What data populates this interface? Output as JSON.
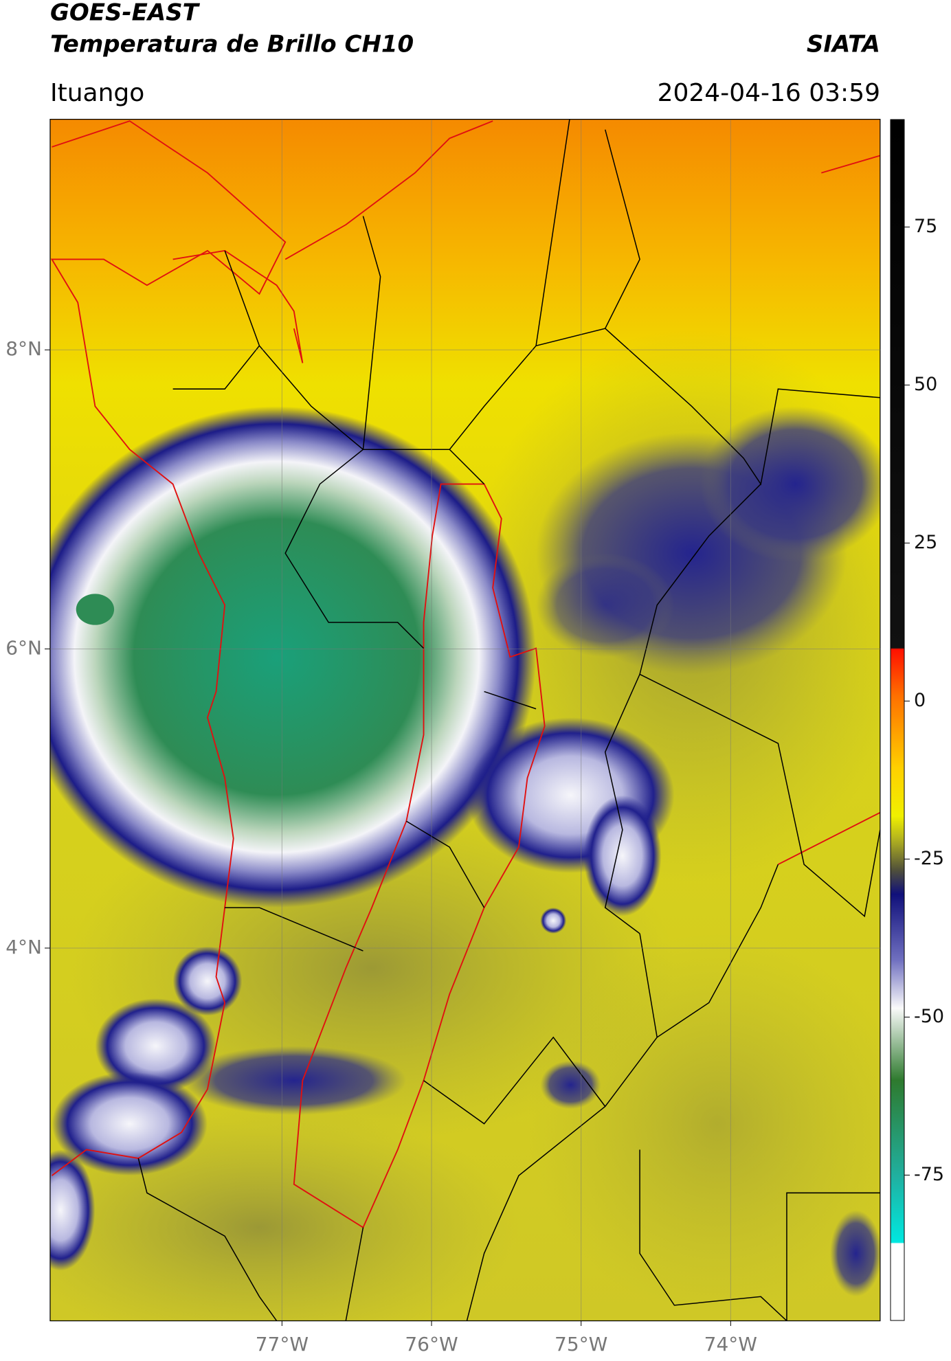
{
  "header": {
    "title": "GOES-EAST",
    "subtitle": "Temperatura de Brillo CH10",
    "source": "SIATA",
    "location": "Ituango",
    "datetime": "2024-04-16 03:59"
  },
  "map": {
    "xlim": [
      -78.55,
      -73.0
    ],
    "ylim": [
      1.51,
      9.54
    ],
    "xticks": [
      {
        "value": -77,
        "label": "77°W"
      },
      {
        "value": -76,
        "label": "76°W"
      },
      {
        "value": -75,
        "label": "75°W"
      },
      {
        "value": -74,
        "label": "74°W"
      }
    ],
    "yticks": [
      {
        "value": 8,
        "label": "8°N"
      },
      {
        "value": 6,
        "label": "6°N"
      },
      {
        "value": 4,
        "label": "4°N"
      }
    ],
    "grid": true
  },
  "colorbar": {
    "lim": [
      -98,
      92
    ],
    "ticks": [
      75,
      50,
      25,
      0,
      -25,
      -50,
      -75
    ]
  }
}
